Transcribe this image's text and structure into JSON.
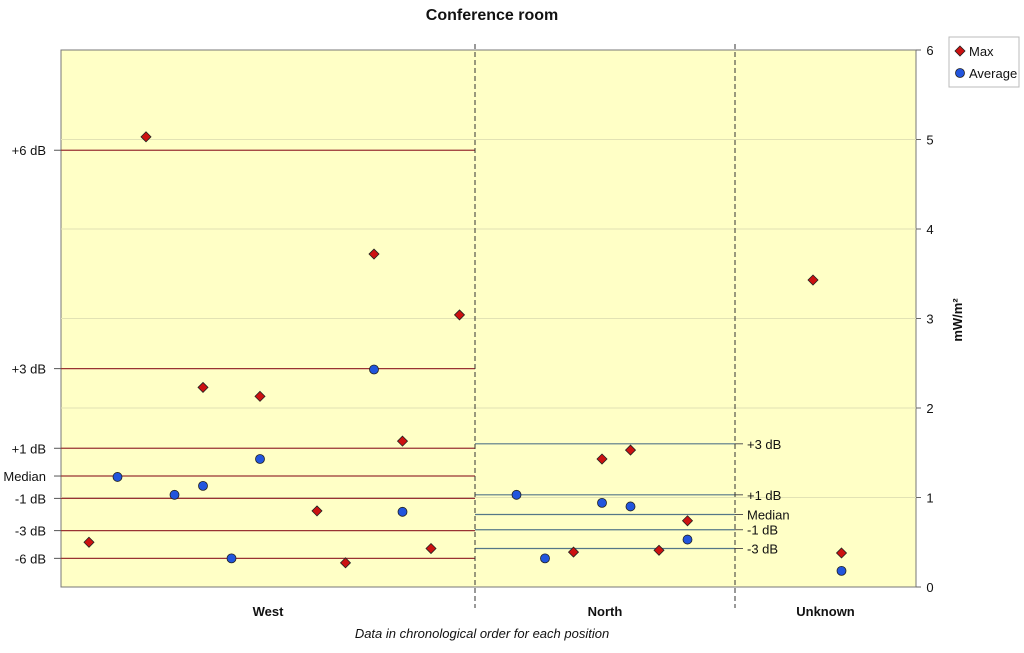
{
  "chart_data": {
    "type": "scatter",
    "title": "Conference room",
    "xlabel": "Data in chronological order for each position",
    "ylabel": "mW/m²",
    "ylim": [
      0,
      6
    ],
    "yticks": [
      "0",
      "1",
      "2",
      "3",
      "4",
      "5",
      "6"
    ],
    "grid": true,
    "legend": "top-right",
    "background": "#ffffc6",
    "categories": [
      "West",
      "North",
      "Unknown"
    ],
    "series": [
      {
        "name": "Max",
        "color": "#cc1111",
        "marker": "diamond",
        "points": [
          {
            "group": "West",
            "seq": 1,
            "y": 0.5
          },
          {
            "group": "West",
            "seq": 3,
            "y": 5.03
          },
          {
            "group": "West",
            "seq": 5,
            "y": 2.23
          },
          {
            "group": "West",
            "seq": 7,
            "y": 2.13
          },
          {
            "group": "West",
            "seq": 9,
            "y": 0.85
          },
          {
            "group": "West",
            "seq": 10,
            "y": 0.27
          },
          {
            "group": "West",
            "seq": 11,
            "y": 3.72
          },
          {
            "group": "West",
            "seq": 12,
            "y": 1.63
          },
          {
            "group": "West",
            "seq": 13,
            "y": 0.43
          },
          {
            "group": "West",
            "seq": 14,
            "y": 3.04
          },
          {
            "group": "North",
            "seq": 4,
            "y": 0.39
          },
          {
            "group": "North",
            "seq": 5,
            "y": 1.43
          },
          {
            "group": "North",
            "seq": 6,
            "y": 1.53
          },
          {
            "group": "North",
            "seq": 7,
            "y": 0.41
          },
          {
            "group": "North",
            "seq": 8,
            "y": 0.74
          },
          {
            "group": "Unknown",
            "seq": 1,
            "y": 3.43
          },
          {
            "group": "Unknown",
            "seq": 2,
            "y": 0.38
          }
        ]
      },
      {
        "name": "Average",
        "color": "#2255dd",
        "marker": "circle",
        "points": [
          {
            "group": "West",
            "seq": 2,
            "y": 1.23
          },
          {
            "group": "West",
            "seq": 4,
            "y": 1.03
          },
          {
            "group": "West",
            "seq": 5,
            "y": 1.13
          },
          {
            "group": "West",
            "seq": 6,
            "y": 0.32
          },
          {
            "group": "West",
            "seq": 7,
            "y": 1.43
          },
          {
            "group": "West",
            "seq": 11,
            "y": 2.43
          },
          {
            "group": "West",
            "seq": 12,
            "y": 0.84
          },
          {
            "group": "North",
            "seq": 2,
            "y": 1.03
          },
          {
            "group": "North",
            "seq": 3,
            "y": 0.32
          },
          {
            "group": "North",
            "seq": 5,
            "y": 0.94
          },
          {
            "group": "North",
            "seq": 6,
            "y": 0.9
          },
          {
            "group": "North",
            "seq": 8,
            "y": 0.53
          },
          {
            "group": "Unknown",
            "seq": 2,
            "y": 0.18
          }
        ]
      }
    ],
    "reference_lines": [
      {
        "group": "West",
        "color": "#993333",
        "label_side": "left",
        "lines": [
          {
            "label": "+6 dB",
            "y": 4.88
          },
          {
            "label": "+3 dB",
            "y": 2.44
          },
          {
            "label": "+1 dB",
            "y": 1.55
          },
          {
            "label": "Median",
            "y": 1.24
          },
          {
            "label": "-1 dB",
            "y": 0.99
          },
          {
            "label": "-3 dB",
            "y": 0.63
          },
          {
            "label": "-6 dB",
            "y": 0.32
          }
        ]
      },
      {
        "group": "North",
        "color": "#557788",
        "label_side": "right",
        "lines": [
          {
            "label": "+3 dB",
            "y": 1.6
          },
          {
            "label": "+1 dB",
            "y": 1.03
          },
          {
            "label": "Median",
            "y": 0.81
          },
          {
            "label": "-1 dB",
            "y": 0.64
          },
          {
            "label": "-3 dB",
            "y": 0.43
          }
        ]
      }
    ]
  }
}
